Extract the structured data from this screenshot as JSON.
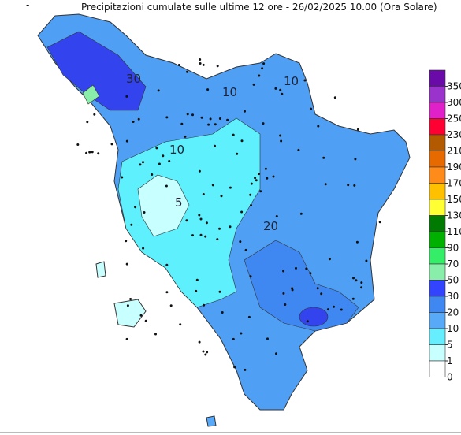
{
  "title": "Precipitazioni cumulate sulle ultime 12 ore - 26/02/2025 10.00 (Ora Solare)",
  "corner_mark": "-",
  "legend": {
    "levels": [
      350,
      300,
      250,
      230,
      210,
      190,
      170,
      150,
      130,
      110,
      90,
      70,
      50,
      30,
      20,
      10,
      5,
      1,
      0
    ],
    "colors": [
      "#6a0aa8",
      "#9933cc",
      "#e020c8",
      "#ff0033",
      "#b35a00",
      "#e66a00",
      "#ff8c1a",
      "#ffc000",
      "#ffff33",
      "#007a00",
      "#00b000",
      "#33ee66",
      "#88eeaa",
      "#3344ff",
      "#3f88f2",
      "#58aaf8",
      "#66eeff",
      "#c8ffff",
      "#ffffff"
    ]
  },
  "contour_labels": [
    "30",
    "10",
    "10",
    "5",
    "20",
    "10"
  ]
}
